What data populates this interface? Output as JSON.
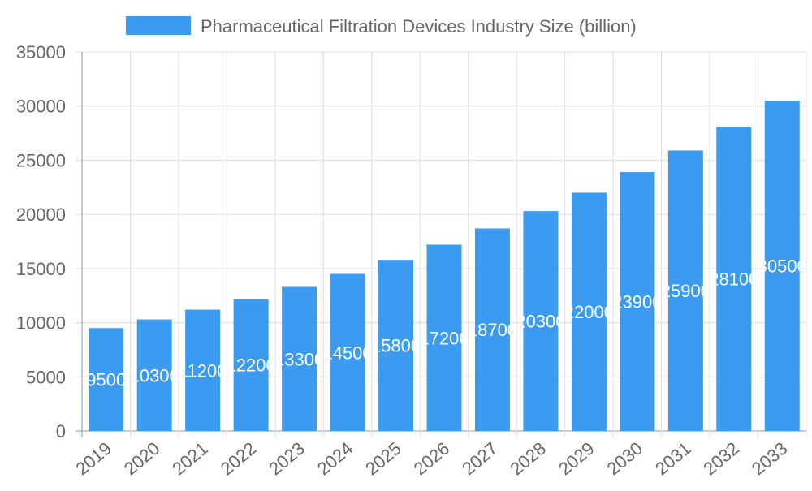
{
  "chart_data": {
    "type": "bar",
    "title": "",
    "xlabel": "",
    "ylabel": "",
    "legend": {
      "position": "top",
      "entries": [
        "Pharmaceutical Filtration Devices Industry Size (billion)"
      ]
    },
    "categories": [
      "2019",
      "2020",
      "2021",
      "2022",
      "2023",
      "2024",
      "2025",
      "2026",
      "2027",
      "2028",
      "2029",
      "2030",
      "2031",
      "2032",
      "2033"
    ],
    "series": [
      {
        "name": "Pharmaceutical Filtration Devices Industry Size (billion)",
        "values": [
          9500,
          10300,
          11200,
          12200,
          13300,
          14500,
          15800,
          17200,
          18700,
          20300,
          22000,
          23900,
          25900,
          28100,
          30500
        ],
        "color": "#3a9bf0"
      }
    ],
    "ylim": [
      0,
      35000
    ],
    "yticks": [
      0,
      5000,
      10000,
      15000,
      20000,
      25000,
      30000,
      35000
    ],
    "grid": true,
    "data_labels": true
  }
}
